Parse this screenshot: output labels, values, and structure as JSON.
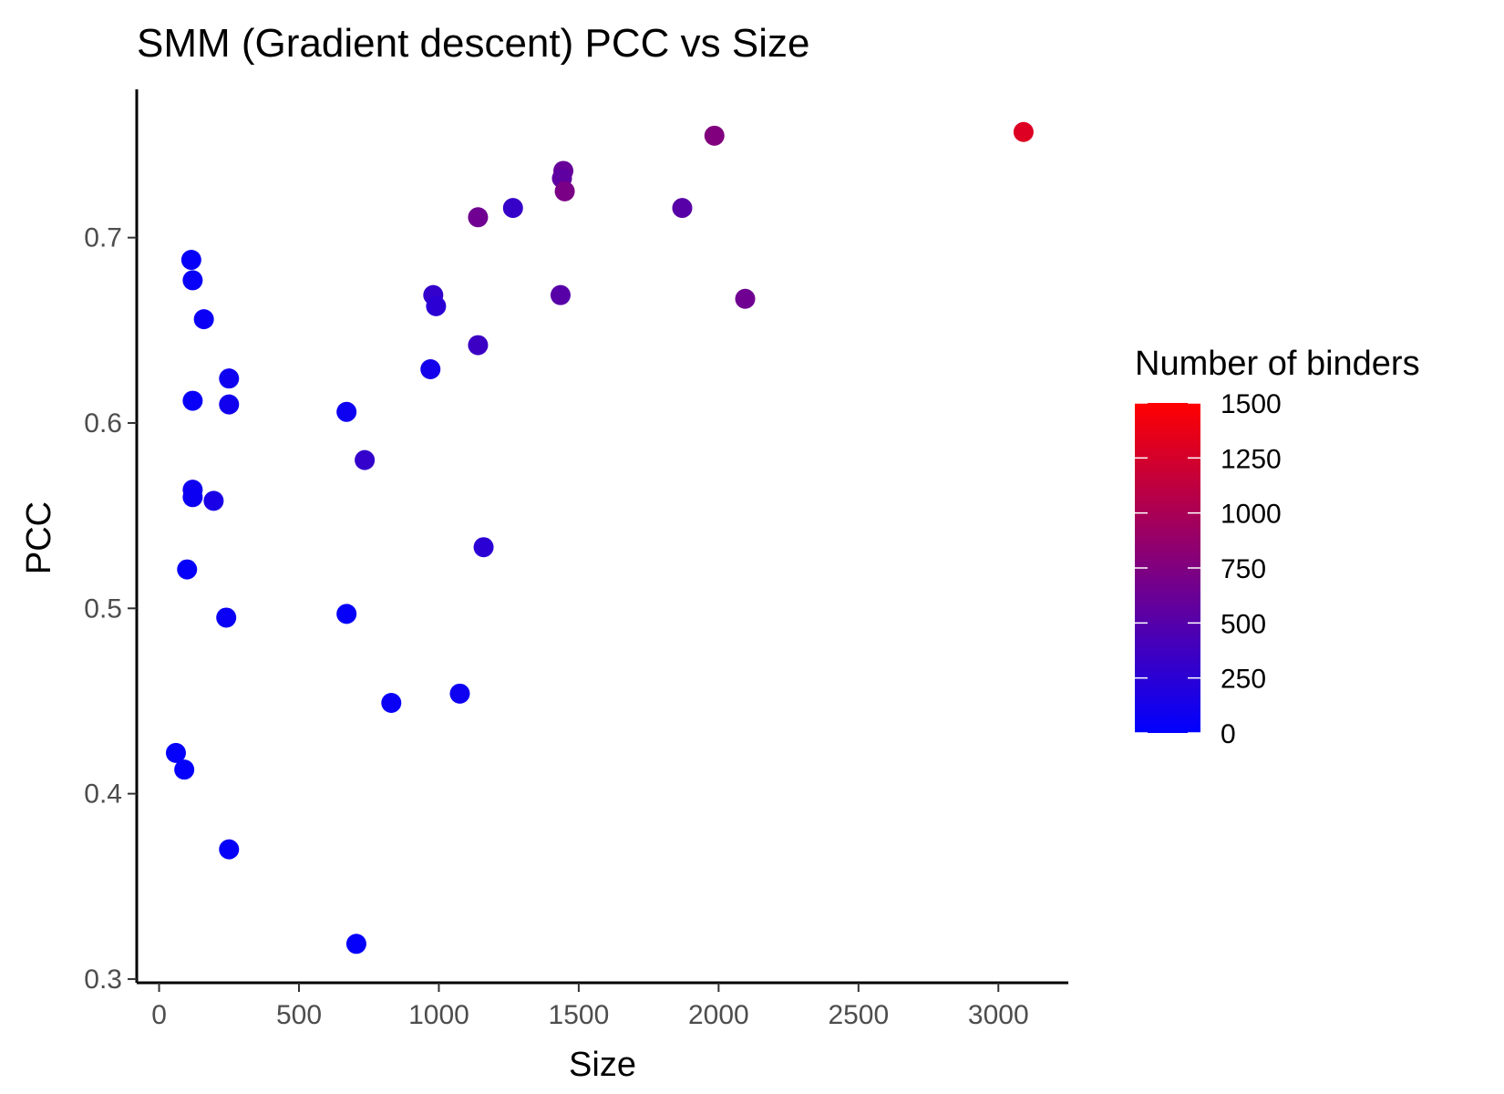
{
  "chart_data": {
    "type": "scatter",
    "title": "SMM (Gradient descent) PCC vs Size",
    "xlabel": "Size",
    "ylabel": "PCC",
    "xlim": [
      -80,
      3250
    ],
    "ylim": [
      0.298,
      0.78
    ],
    "x_ticks": [
      0,
      500,
      1000,
      1500,
      2000,
      2500,
      3000
    ],
    "x_tick_labels": [
      "0",
      "500",
      "1000",
      "1500",
      "2000",
      "2500",
      "3000"
    ],
    "y_ticks": [
      0.3,
      0.4,
      0.5,
      0.6,
      0.7
    ],
    "y_tick_labels": [
      "0.3",
      "0.4",
      "0.5",
      "0.6",
      "0.7"
    ],
    "grid": false,
    "legend": {
      "title": "Number of binders",
      "placement": "right",
      "type": "colorbar",
      "range": [
        0,
        1500
      ],
      "ticks": [
        0,
        250,
        500,
        750,
        1000,
        1250,
        1500
      ],
      "tick_labels": [
        "0",
        "250",
        "500",
        "750",
        "1000",
        "1250",
        "1500"
      ],
      "low_color": "#0000ff",
      "high_color": "#ff0000"
    },
    "points": [
      {
        "x": 3090,
        "y": 0.757,
        "binders": 1300
      },
      {
        "x": 1985,
        "y": 0.755,
        "binders": 760
      },
      {
        "x": 1445,
        "y": 0.736,
        "binders": 600
      },
      {
        "x": 1440,
        "y": 0.732,
        "binders": 560
      },
      {
        "x": 1450,
        "y": 0.725,
        "binders": 720
      },
      {
        "x": 1265,
        "y": 0.716,
        "binders": 320
      },
      {
        "x": 1870,
        "y": 0.716,
        "binders": 520
      },
      {
        "x": 1140,
        "y": 0.711,
        "binders": 650
      },
      {
        "x": 2095,
        "y": 0.667,
        "binders": 650
      },
      {
        "x": 1435,
        "y": 0.669,
        "binders": 520
      },
      {
        "x": 980,
        "y": 0.669,
        "binders": 300
      },
      {
        "x": 990,
        "y": 0.663,
        "binders": 250
      },
      {
        "x": 1140,
        "y": 0.642,
        "binders": 350
      },
      {
        "x": 970,
        "y": 0.629,
        "binders": 120
      },
      {
        "x": 115,
        "y": 0.688,
        "binders": 40
      },
      {
        "x": 120,
        "y": 0.677,
        "binders": 50
      },
      {
        "x": 160,
        "y": 0.656,
        "binders": 60
      },
      {
        "x": 250,
        "y": 0.624,
        "binders": 90
      },
      {
        "x": 250,
        "y": 0.61,
        "binders": 100
      },
      {
        "x": 120,
        "y": 0.612,
        "binders": 50
      },
      {
        "x": 670,
        "y": 0.606,
        "binders": 80
      },
      {
        "x": 735,
        "y": 0.58,
        "binders": 300
      },
      {
        "x": 120,
        "y": 0.564,
        "binders": 90
      },
      {
        "x": 120,
        "y": 0.56,
        "binders": 70
      },
      {
        "x": 195,
        "y": 0.558,
        "binders": 150
      },
      {
        "x": 1160,
        "y": 0.533,
        "binders": 250
      },
      {
        "x": 100,
        "y": 0.521,
        "binders": 40
      },
      {
        "x": 240,
        "y": 0.495,
        "binders": 60
      },
      {
        "x": 670,
        "y": 0.497,
        "binders": 40
      },
      {
        "x": 830,
        "y": 0.449,
        "binders": 60
      },
      {
        "x": 1075,
        "y": 0.454,
        "binders": 80
      },
      {
        "x": 60,
        "y": 0.422,
        "binders": 30
      },
      {
        "x": 90,
        "y": 0.413,
        "binders": 30
      },
      {
        "x": 250,
        "y": 0.37,
        "binders": 40
      },
      {
        "x": 705,
        "y": 0.319,
        "binders": 30
      }
    ]
  }
}
